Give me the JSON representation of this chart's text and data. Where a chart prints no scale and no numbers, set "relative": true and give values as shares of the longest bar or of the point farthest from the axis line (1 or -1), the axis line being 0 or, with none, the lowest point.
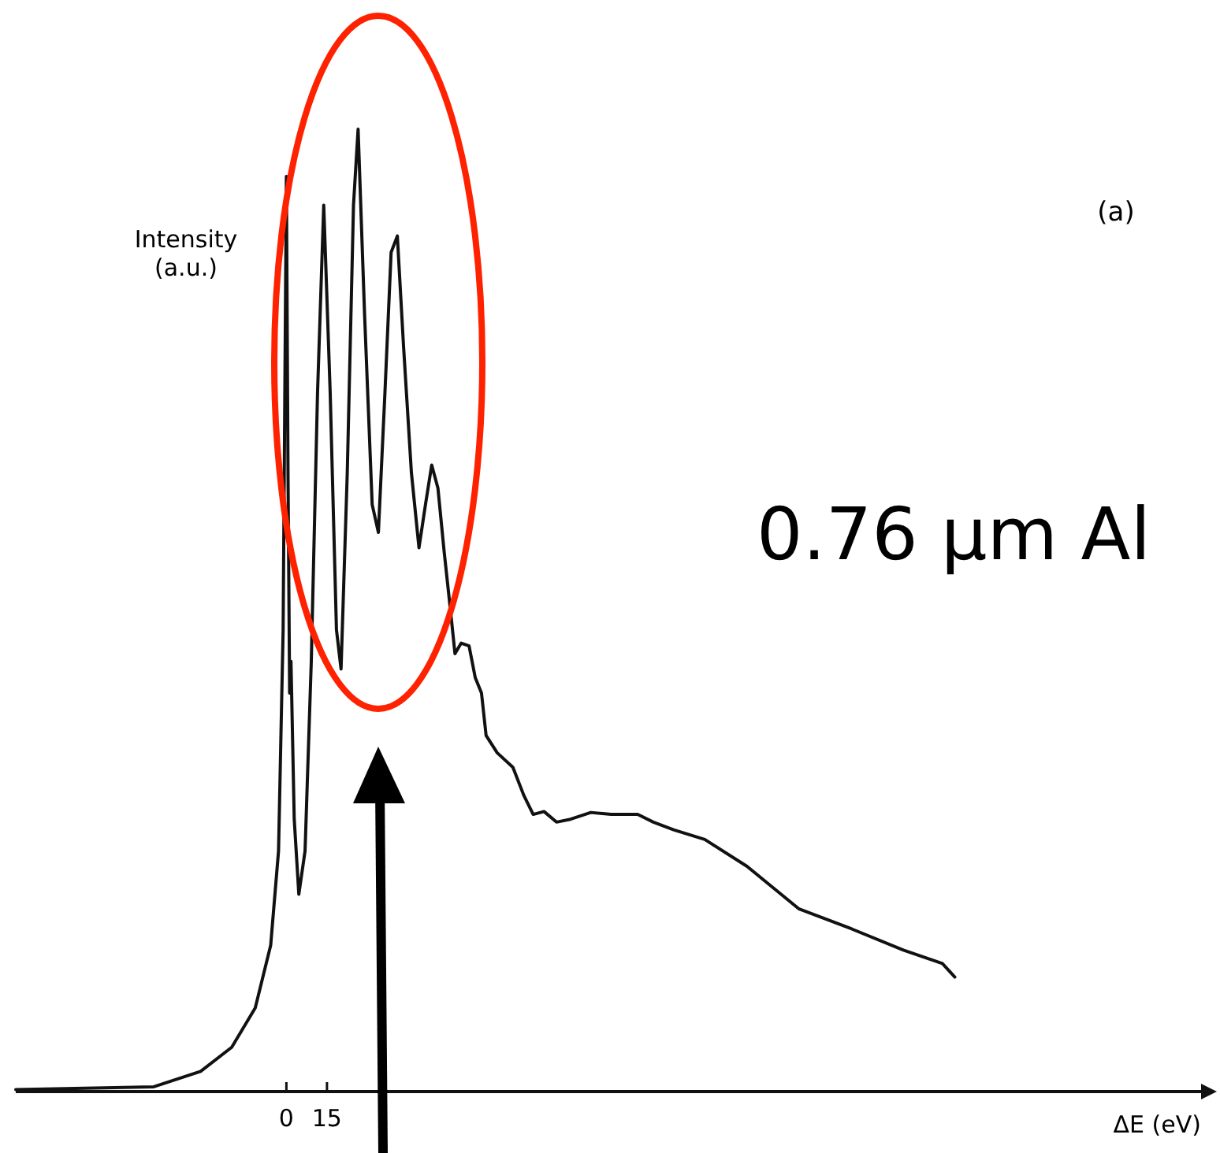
{
  "chart_data": {
    "type": "line",
    "relative": true,
    "xlabel": "ΔE (eV)",
    "ylabel": "Intensity (a.u.)",
    "xlim": [
      -100,
      338
    ],
    "xticks": [
      0,
      15
    ],
    "grid": false,
    "marker": "none",
    "line_style": "solid",
    "annotations": [
      "(a)",
      "0.76 µm Al"
    ],
    "series": [
      {
        "color": "#111111",
        "x": [
          -100,
          -49.0,
          -31.7,
          -20.2,
          -11.5,
          -5.8,
          -2.9,
          -1.2,
          0,
          0.6,
          1.2,
          1.7,
          2.9,
          4.6,
          6.9,
          9.2,
          11.5,
          13.8,
          16.2,
          18.5,
          20.2,
          22.5,
          24.8,
          26.5,
          28.9,
          31.7,
          34.0,
          36.4,
          38.7,
          41.0,
          43.3,
          46.2,
          49.0,
          51.4,
          53.7,
          56.0,
          58.3,
          60.6,
          62.3,
          64.6,
          67.5,
          69.8,
          72.1,
          73.8,
          77.9,
          83.7,
          87.7,
          91.2,
          95.2,
          99.8,
          105.0,
          112.5,
          120.0,
          129.8,
          135.6,
          143.1,
          154.6,
          170.2,
          189.3,
          208.9,
          228.0,
          242.4,
          247.0
        ],
        "values": [
          0.002,
          0.005,
          0.021,
          0.046,
          0.087,
          0.152,
          0.25,
          0.48,
          0.951,
          0.643,
          0.414,
          0.447,
          0.283,
          0.205,
          0.25,
          0.447,
          0.725,
          0.921,
          0.725,
          0.48,
          0.439,
          0.643,
          0.921,
          1,
          0.807,
          0.61,
          0.581,
          0.725,
          0.872,
          0.889,
          0.774,
          0.643,
          0.565,
          0.61,
          0.651,
          0.627,
          0.561,
          0.501,
          0.455,
          0.466,
          0.463,
          0.43,
          0.414,
          0.37,
          0.352,
          0.337,
          0.308,
          0.288,
          0.291,
          0.28,
          0.283,
          0.29,
          0.288,
          0.288,
          0.28,
          0.272,
          0.262,
          0.234,
          0.19,
          0.169,
          0.147,
          0.133,
          0.119
        ]
      }
    ]
  }
}
